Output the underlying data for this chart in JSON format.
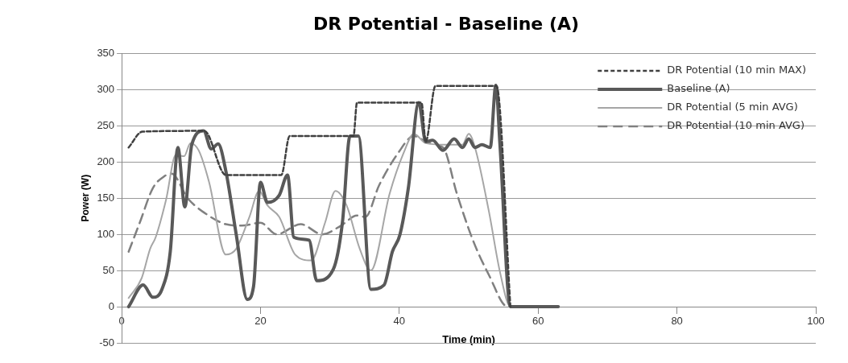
{
  "chart_data": {
    "type": "line",
    "title": "DR Potential - Baseline (A)",
    "xlabel": "Time (min)",
    "ylabel": "Power (W)",
    "xlim": [
      0,
      100
    ],
    "xticks": [
      0,
      20,
      40,
      60,
      80,
      100
    ],
    "ylim": [
      -50,
      350
    ],
    "yticks": [
      -50,
      0,
      50,
      100,
      150,
      200,
      250,
      300,
      350
    ],
    "grid": "y",
    "legend": "top right",
    "marker": "none",
    "series": [
      {
        "name": "DR Potential (10 min MAX)",
        "color": "#404040",
        "line_style": "dotted",
        "x": [
          1,
          3,
          11.9,
          15,
          23,
          24.2,
          33.4,
          33.9,
          43.2,
          43.8,
          45.2,
          54,
          56
        ],
        "values": [
          220,
          242,
          243,
          182,
          182,
          236,
          236,
          282,
          282,
          228,
          305,
          305,
          0
        ]
      },
      {
        "name": "Baseline (A)",
        "color": "#595959",
        "line_style": "solid",
        "x": [
          1,
          3.1,
          4.5,
          5.8,
          7,
          8.1,
          9.1,
          10.1,
          11.8,
          12.9,
          13.9,
          15,
          16.5,
          18.1,
          19,
          20,
          21,
          22.7,
          23.9,
          24.8,
          27,
          28.1,
          30.5,
          31.8,
          32.9,
          34.1,
          35.9,
          37.8,
          39,
          40.1,
          41.3,
          42.8,
          43.8,
          44.8,
          46.3,
          47.9,
          49.1,
          50,
          50.9,
          51.9,
          53.1,
          53.9,
          54.5,
          56,
          62.9
        ],
        "values": [
          0,
          30,
          13,
          24,
          76,
          220,
          138,
          224,
          243,
          218,
          225,
          188,
          100,
          10,
          28,
          172,
          144,
          154,
          182,
          96,
          92,
          36,
          52,
          116,
          236,
          236,
          24,
          30,
          76,
          100,
          164,
          282,
          228,
          230,
          216,
          232,
          220,
          232,
          220,
          224,
          220,
          306,
          224,
          0,
          0
        ]
      },
      {
        "name": "DR Potential (5 min AVG)",
        "color": "#a6a6a6",
        "line_style": "solid",
        "x": [
          1,
          2.9,
          4.1,
          4.9,
          6.4,
          7.8,
          9,
          9.9,
          11.1,
          12.6,
          15,
          16.5,
          18.4,
          19.8,
          21,
          22.7,
          25,
          27.3,
          29.3,
          30.8,
          32.4,
          34.3,
          35.9,
          38.6,
          40.6,
          42.1,
          43.8,
          46.3,
          49.1,
          50,
          50.9,
          52.9,
          54.5,
          56,
          62.9
        ],
        "values": [
          12,
          40,
          80,
          96,
          148,
          210,
          208,
          226,
          216,
          172,
          72,
          80,
          124,
          160,
          140,
          124,
          72,
          64,
          116,
          160,
          140,
          80,
          50,
          156,
          212,
          239,
          226,
          224,
          224,
          239,
          220,
          132,
          48,
          0,
          0
        ]
      },
      {
        "name": "DR Potential (10 min AVG)",
        "color": "#808080",
        "line_style": "dashed",
        "x": [
          1,
          2.6,
          4.5,
          6.1,
          7.2,
          9.5,
          12.2,
          15,
          17.3,
          20,
          22.3,
          25.8,
          28.9,
          31.6,
          33.9,
          35.1,
          37.1,
          39.8,
          42.1,
          44.3,
          46.3,
          48.3,
          50.6,
          52.9,
          55.6,
          62.9
        ],
        "values": [
          76,
          116,
          164,
          180,
          184,
          150,
          128,
          114,
          112,
          116,
          100,
          114,
          100,
          112,
          126,
          124,
          168,
          212,
          236,
          226,
          220,
          156,
          92,
          44,
          0,
          0
        ]
      }
    ]
  }
}
